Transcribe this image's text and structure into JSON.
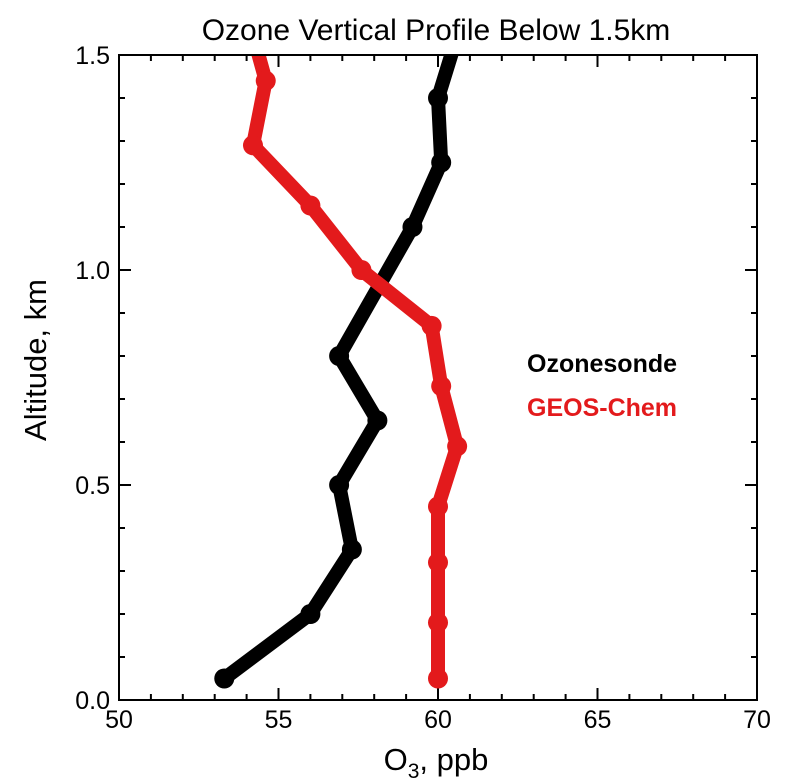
{
  "chart_data": {
    "type": "line",
    "title": "Ozone Vertical Profile Below 1.5km",
    "xlabel": "O3, ppb",
    "xlabel_main": "O",
    "xlabel_sub": "3",
    "xlabel_rest": ", ppb",
    "ylabel": "Altitude, km",
    "xlim": [
      50,
      70
    ],
    "ylim": [
      0.0,
      1.5
    ],
    "x_ticks": [
      "50",
      "55",
      "60",
      "65",
      "70"
    ],
    "y_ticks": [
      "0.0",
      "0.5",
      "1.0",
      "1.5"
    ],
    "legend_position": "right",
    "series": [
      {
        "name": "Ozonesonde",
        "color": "#000000",
        "points": [
          {
            "x": 53.3,
            "y": 0.05
          },
          {
            "x": 56.0,
            "y": 0.2
          },
          {
            "x": 57.3,
            "y": 0.35
          },
          {
            "x": 56.9,
            "y": 0.5
          },
          {
            "x": 58.1,
            "y": 0.65
          },
          {
            "x": 56.9,
            "y": 0.8
          },
          {
            "x": 59.2,
            "y": 1.1
          },
          {
            "x": 60.1,
            "y": 1.25
          },
          {
            "x": 60.0,
            "y": 1.4
          },
          {
            "x": 60.5,
            "y": 1.52
          }
        ]
      },
      {
        "name": "GEOS-Chem",
        "color": "#e31a1c",
        "points": [
          {
            "x": 60.0,
            "y": 0.05
          },
          {
            "x": 60.0,
            "y": 0.18
          },
          {
            "x": 60.0,
            "y": 0.32
          },
          {
            "x": 60.0,
            "y": 0.45
          },
          {
            "x": 60.6,
            "y": 0.59
          },
          {
            "x": 60.1,
            "y": 0.73
          },
          {
            "x": 59.8,
            "y": 0.87
          },
          {
            "x": 57.6,
            "y": 1.0
          },
          {
            "x": 56.0,
            "y": 1.15
          },
          {
            "x": 54.2,
            "y": 1.29
          },
          {
            "x": 54.6,
            "y": 1.44
          },
          {
            "x": 54.3,
            "y": 1.52
          }
        ]
      }
    ]
  }
}
